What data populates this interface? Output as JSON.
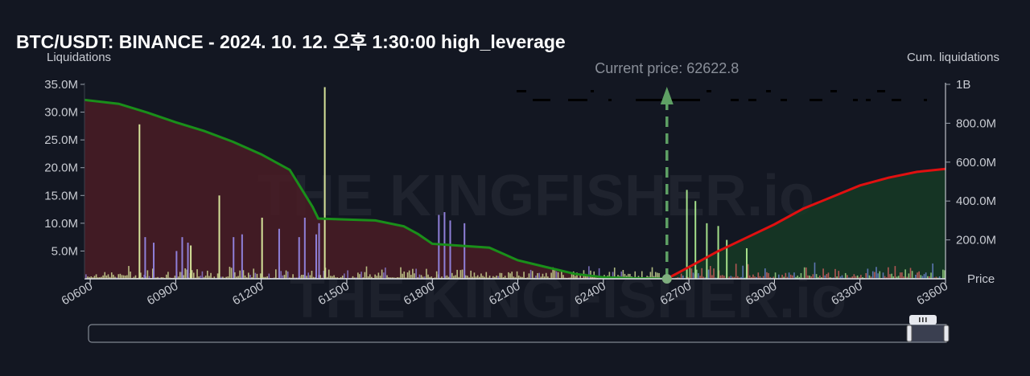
{
  "title": "BTC/USDT: BINANCE - 2024. 10. 12. 오후 1:30:00 high_leverage",
  "watermark": "THE KINGFISHER.io",
  "colors": {
    "background": "#131722",
    "short_cum_line": "#1a8f1a",
    "long_cum_line": "#e01010",
    "short_fill": "#4a1c24",
    "long_fill": "#163a24",
    "arrow": "#5ea064",
    "bar_yellow": "#d6e39a",
    "bar_purple": "#8f7fd8",
    "bar_green": "#a4e08a",
    "bar_red": "#d86060",
    "bar_blue": "#6f86d6"
  },
  "chart_data": {
    "type": "bar",
    "left_axis": {
      "label": "Liquidations",
      "ticks": [
        "5.0M",
        "10.0M",
        "15.0M",
        "20.0M",
        "25.0M",
        "30.0M",
        "35.0M"
      ],
      "tick_values": [
        5000000,
        10000000,
        15000000,
        20000000,
        25000000,
        30000000,
        35000000
      ],
      "ylim": [
        0,
        35000000
      ]
    },
    "right_axis": {
      "label": "Cum. liquidations",
      "ticks": [
        "200.0M",
        "400.0M",
        "600.0M",
        "800.0M",
        "1B"
      ],
      "tick_values": [
        200000000,
        400000000,
        600000000,
        800000000,
        1000000000
      ],
      "ylim": [
        0,
        1000000000
      ]
    },
    "x_axis": {
      "label": "Price",
      "ticks": [
        "60600",
        "60900",
        "61200",
        "61500",
        "61800",
        "62100",
        "62400",
        "62700",
        "63000",
        "63300",
        "63600"
      ],
      "tick_values": [
        60600,
        60900,
        61200,
        61500,
        61800,
        62100,
        62400,
        62700,
        63000,
        63300,
        63600
      ],
      "xlim": [
        60580,
        63600
      ]
    },
    "current_price": 62622.8,
    "current_price_label": "Current price: 62622.8",
    "series": [
      {
        "type": "line",
        "role": "short-side cumulative liquidations",
        "axis": "right",
        "x": [
          60580,
          60700,
          60800,
          60900,
          61000,
          61100,
          61200,
          61300,
          61380,
          61400,
          61500,
          61600,
          61700,
          61750,
          61800,
          61900,
          62000,
          62100,
          62200,
          62300,
          62400,
          62500,
          62622.8
        ],
        "y": [
          920000000,
          900000000,
          855000000,
          805000000,
          760000000,
          705000000,
          640000000,
          560000000,
          370000000,
          310000000,
          305000000,
          300000000,
          270000000,
          230000000,
          180000000,
          170000000,
          160000000,
          95000000,
          60000000,
          25000000,
          8000000,
          3000000,
          0
        ]
      },
      {
        "type": "line",
        "role": "long-side cumulative liquidations",
        "axis": "right",
        "x": [
          62622.8,
          62700,
          62800,
          62900,
          63000,
          63100,
          63200,
          63300,
          63400,
          63500,
          63600
        ],
        "y": [
          0,
          60000000,
          140000000,
          210000000,
          280000000,
          360000000,
          420000000,
          480000000,
          520000000,
          550000000,
          565000000
        ]
      }
    ],
    "notable_bars": [
      {
        "x": 60770,
        "y": 27800000,
        "color": "yellow"
      },
      {
        "x": 60790,
        "y": 7500000,
        "color": "purple"
      },
      {
        "x": 60820,
        "y": 6500000,
        "color": "purple"
      },
      {
        "x": 60900,
        "y": 5000000,
        "color": "purple"
      },
      {
        "x": 60920,
        "y": 7500000,
        "color": "purple"
      },
      {
        "x": 60940,
        "y": 6500000,
        "color": "purple"
      },
      {
        "x": 60950,
        "y": 6000000,
        "color": "yellow"
      },
      {
        "x": 61050,
        "y": 15000000,
        "color": "yellow"
      },
      {
        "x": 61100,
        "y": 7500000,
        "color": "purple"
      },
      {
        "x": 61130,
        "y": 8000000,
        "color": "purple"
      },
      {
        "x": 61200,
        "y": 11000000,
        "color": "yellow"
      },
      {
        "x": 61260,
        "y": 9000000,
        "color": "purple"
      },
      {
        "x": 61330,
        "y": 7500000,
        "color": "purple"
      },
      {
        "x": 61350,
        "y": 11000000,
        "color": "purple"
      },
      {
        "x": 61390,
        "y": 8000000,
        "color": "purple"
      },
      {
        "x": 61400,
        "y": 10000000,
        "color": "purple"
      },
      {
        "x": 61420,
        "y": 34500000,
        "color": "yellow"
      },
      {
        "x": 61820,
        "y": 11500000,
        "color": "purple"
      },
      {
        "x": 61840,
        "y": 12000000,
        "color": "purple"
      },
      {
        "x": 61860,
        "y": 10500000,
        "color": "purple"
      },
      {
        "x": 61910,
        "y": 10000000,
        "color": "purple"
      },
      {
        "x": 62690,
        "y": 16000000,
        "color": "green"
      },
      {
        "x": 62720,
        "y": 14000000,
        "color": "green"
      },
      {
        "x": 62760,
        "y": 10000000,
        "color": "green"
      },
      {
        "x": 62800,
        "y": 9500000,
        "color": "green"
      },
      {
        "x": 62830,
        "y": 7000000,
        "color": "green"
      },
      {
        "x": 62900,
        "y": 5500000,
        "color": "green"
      }
    ]
  },
  "range_slider": {
    "handle_icon": "grip-icon"
  }
}
